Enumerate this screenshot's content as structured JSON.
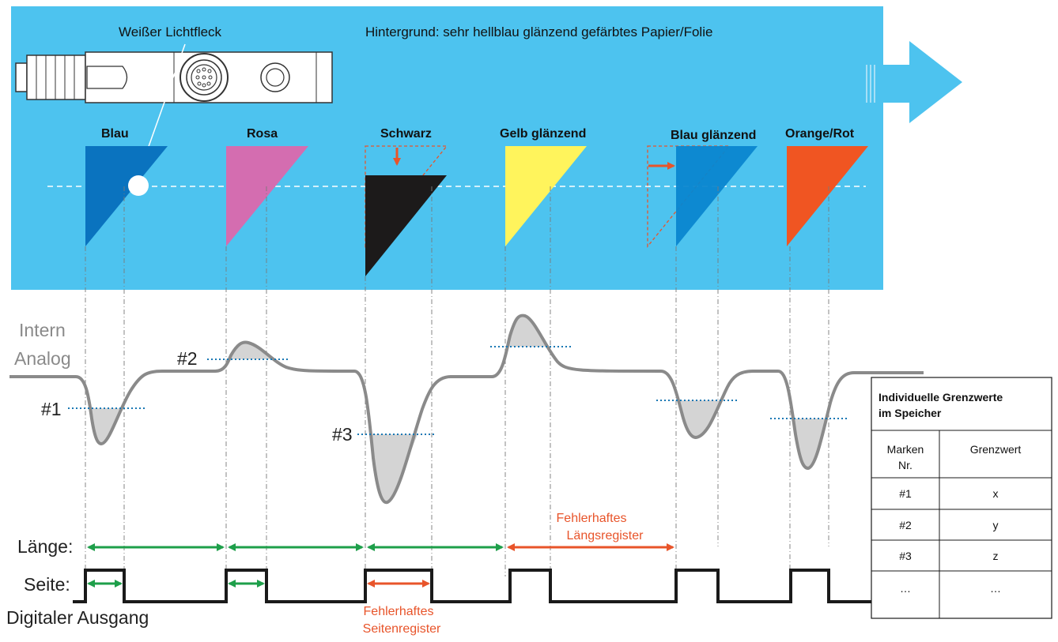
{
  "colors": {
    "background_panel": "#4dc3ef",
    "blau": "#0a73bf",
    "rosa": "#d46db0",
    "schwarz": "#1c1a1a",
    "gelb": "#fff45c",
    "blau_glaenzend": "#0a86cf",
    "orange_rot": "#f05522",
    "signal": "#8a8a8a",
    "threshold": "#1a78b4",
    "ok_arrow": "#1e9f4a",
    "error": "#e8542a"
  },
  "header": {
    "light_spot_label": "Weißer Lichtfleck",
    "background_label": "Hintergrund: sehr hellblau glänzend gefärbtes Papier/Folie"
  },
  "marks": [
    {
      "label": "Blau",
      "color": "blau"
    },
    {
      "label": "Rosa",
      "color": "rosa"
    },
    {
      "label": "Schwarz",
      "color": "schwarz"
    },
    {
      "label": "Gelb glänzend",
      "color": "gelb"
    },
    {
      "label": "Blau glänzend",
      "color": "blau_glaenzend"
    },
    {
      "label": "Orange/Rot",
      "color": "orange_rot"
    }
  ],
  "signal": {
    "label_line1": "Intern",
    "label_line2": "Analog",
    "thresholds": [
      "#1",
      "#2",
      "#3"
    ]
  },
  "digital": {
    "length_label": "Länge:",
    "side_label": "Seite:",
    "output_label": "Digitaler Ausgang",
    "error_length_line1": "Fehlerhaftes",
    "error_length_line2": "Längsregister",
    "error_side_line1": "Fehlerhaftes",
    "error_side_line2": "Seitenregister"
  },
  "table": {
    "title_line1": "Individuelle Grenzwerte",
    "title_line2": "im Speicher",
    "col1_line1": "Marken",
    "col1_line2": "Nr.",
    "col2": "Grenzwert",
    "rows": [
      {
        "nr": "#1",
        "value": "x"
      },
      {
        "nr": "#2",
        "value": "y"
      },
      {
        "nr": "#3",
        "value": "z"
      },
      {
        "nr": "…",
        "value": "…"
      }
    ]
  }
}
